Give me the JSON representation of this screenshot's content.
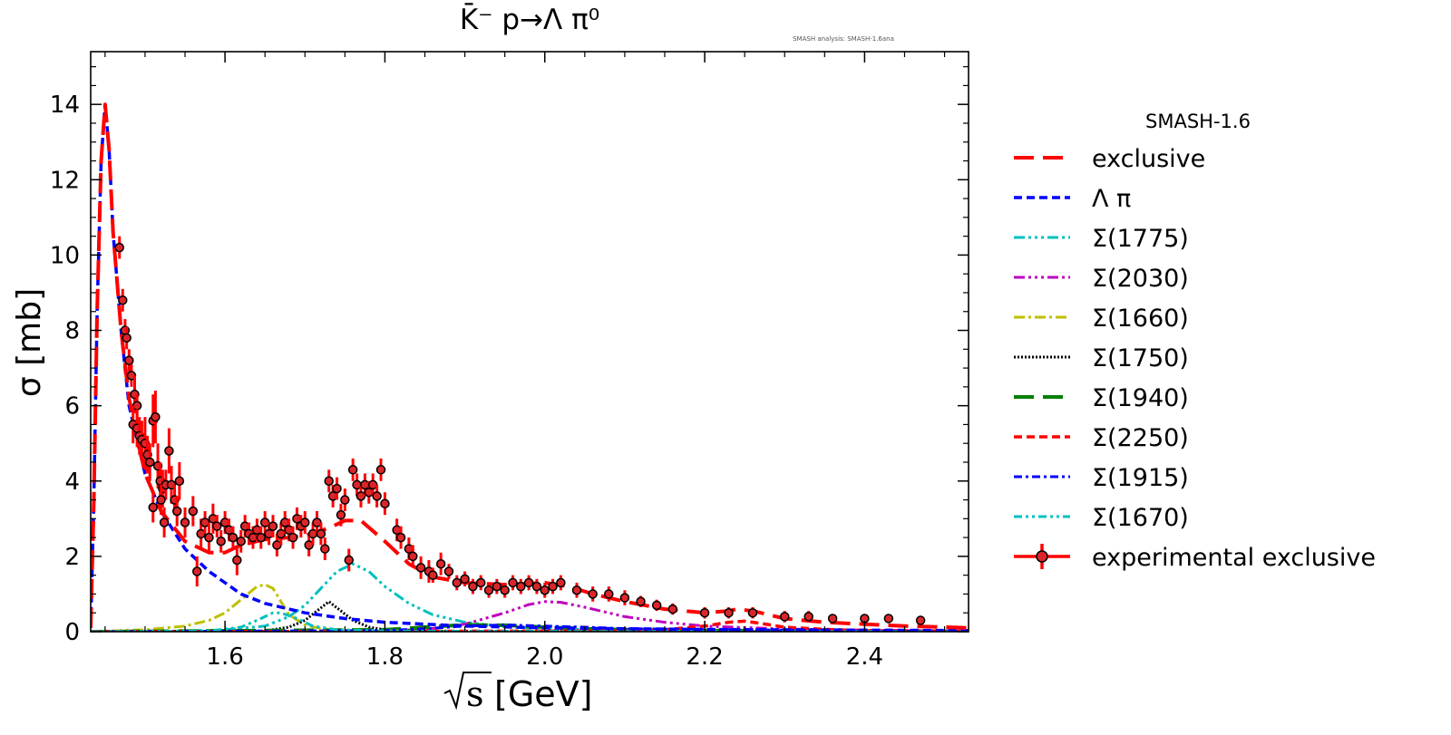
{
  "chart_data": {
    "type": "line",
    "title": "K̄⁻ p→Λ π⁰",
    "watermark": "SMASH analysis: SMASH-1.6ana",
    "xlabel_root": "s",
    "xlabel_unit": "[GeV]",
    "ylabel": "σ [mb]",
    "xlim": [
      1.432,
      2.53
    ],
    "ylim": [
      0,
      15.4
    ],
    "xticks": [
      1.6,
      1.8,
      2.0,
      2.2,
      2.4
    ],
    "xtick_labels": [
      "1.6",
      "1.8",
      "2.0",
      "2.2",
      "2.4"
    ],
    "yticks": [
      0,
      2,
      4,
      6,
      8,
      10,
      12,
      14
    ],
    "ytick_labels": [
      "0",
      "2",
      "4",
      "6",
      "8",
      "10",
      "12",
      "14"
    ],
    "legend_title": "SMASH-1.6",
    "series": [
      {
        "name": "exclusive",
        "color": "#ff0000",
        "dash": "22,10",
        "width": 4,
        "x": [
          1.432,
          1.436,
          1.44,
          1.445,
          1.45,
          1.455,
          1.46,
          1.47,
          1.48,
          1.5,
          1.52,
          1.55,
          1.58,
          1.6,
          1.62,
          1.65,
          1.68,
          1.7,
          1.73,
          1.75,
          1.77,
          1.8,
          1.83,
          1.86,
          1.9,
          1.95,
          2.0,
          2.03,
          2.06,
          2.1,
          2.15,
          2.2,
          2.23,
          2.24,
          2.26,
          2.3,
          2.35,
          2.4,
          2.45,
          2.5,
          2.53
        ],
        "y": [
          0.1,
          3.5,
          8.5,
          12.5,
          14.0,
          12.8,
          10.6,
          8.0,
          6.2,
          4.2,
          3.2,
          2.4,
          2.1,
          2.1,
          2.3,
          2.45,
          2.5,
          2.55,
          2.75,
          2.95,
          2.95,
          2.4,
          1.8,
          1.45,
          1.3,
          1.25,
          1.3,
          1.2,
          1.0,
          0.8,
          0.6,
          0.5,
          0.55,
          0.6,
          0.55,
          0.35,
          0.25,
          0.2,
          0.15,
          0.12,
          0.1
        ]
      },
      {
        "name": "Λ π",
        "color": "#0000ff",
        "dash": "9,5",
        "width": 3.5,
        "x": [
          1.432,
          1.436,
          1.44,
          1.445,
          1.45,
          1.455,
          1.46,
          1.47,
          1.48,
          1.5,
          1.52,
          1.55,
          1.58,
          1.6,
          1.62,
          1.65,
          1.7,
          1.75,
          1.8,
          1.9,
          2.0,
          2.1,
          2.2,
          2.3,
          2.4,
          2.53
        ],
        "y": [
          0.1,
          3.5,
          8.5,
          12.5,
          14.0,
          12.8,
          10.6,
          8.0,
          6.0,
          4.2,
          3.2,
          2.2,
          1.6,
          1.3,
          1.0,
          0.75,
          0.5,
          0.35,
          0.25,
          0.15,
          0.1,
          0.08,
          0.06,
          0.05,
          0.04,
          0.03
        ]
      },
      {
        "name": "Σ(1775)",
        "color": "#00bfbf",
        "dash": "12,4,3,4,3,4,3,4",
        "width": 3,
        "x": [
          1.432,
          1.55,
          1.6,
          1.65,
          1.68,
          1.7,
          1.72,
          1.74,
          1.76,
          1.78,
          1.8,
          1.83,
          1.86,
          1.9,
          1.95,
          2.0,
          2.1,
          2.2,
          2.53
        ],
        "y": [
          0,
          0.02,
          0.05,
          0.15,
          0.4,
          0.7,
          1.15,
          1.6,
          1.8,
          1.6,
          1.2,
          0.75,
          0.45,
          0.25,
          0.13,
          0.08,
          0.04,
          0.02,
          0.01
        ]
      },
      {
        "name": "Σ(2030)",
        "color": "#bf00bf",
        "dash": "12,4,3,4,3,4,3,4",
        "width": 3,
        "x": [
          1.432,
          1.8,
          1.85,
          1.9,
          1.95,
          1.98,
          2.0,
          2.02,
          2.05,
          2.1,
          2.15,
          2.2,
          2.3,
          2.4,
          2.53
        ],
        "y": [
          0,
          0.02,
          0.06,
          0.2,
          0.5,
          0.72,
          0.8,
          0.78,
          0.65,
          0.4,
          0.25,
          0.15,
          0.07,
          0.04,
          0.02
        ]
      },
      {
        "name": "Σ(1660)",
        "color": "#bfbf00",
        "dash": "12,4,3,4",
        "width": 3,
        "x": [
          1.432,
          1.5,
          1.55,
          1.58,
          1.6,
          1.62,
          1.64,
          1.65,
          1.66,
          1.67,
          1.68,
          1.7,
          1.72,
          1.76,
          1.8,
          1.9,
          2.0,
          2.53
        ],
        "y": [
          0,
          0.05,
          0.15,
          0.3,
          0.5,
          0.85,
          1.2,
          1.25,
          1.15,
          0.8,
          0.45,
          0.18,
          0.08,
          0.03,
          0.02,
          0.01,
          0.005,
          0
        ]
      },
      {
        "name": "Σ(1750)",
        "color": "#000000",
        "dash": "2,2",
        "width": 3,
        "x": [
          1.432,
          1.65,
          1.68,
          1.7,
          1.715,
          1.73,
          1.745,
          1.76,
          1.78,
          1.8,
          1.85,
          1.9,
          2.53
        ],
        "y": [
          0,
          0.02,
          0.12,
          0.3,
          0.55,
          0.8,
          0.55,
          0.3,
          0.12,
          0.05,
          0.02,
          0.01,
          0
        ]
      },
      {
        "name": "Σ(1940)",
        "color": "#007f00",
        "dash": "22,10",
        "width": 4,
        "x": [
          1.432,
          1.8,
          1.85,
          1.9,
          1.95,
          2.0,
          2.05,
          2.1,
          2.2,
          2.3,
          2.53
        ],
        "y": [
          0,
          0.05,
          0.12,
          0.18,
          0.17,
          0.12,
          0.08,
          0.05,
          0.03,
          0.02,
          0.01
        ]
      },
      {
        "name": "Σ(2250)",
        "color": "#ff0000",
        "dash": "9,5",
        "width": 3.5,
        "x": [
          1.432,
          2.1,
          2.15,
          2.2,
          2.23,
          2.25,
          2.27,
          2.3,
          2.35,
          2.4,
          2.53
        ],
        "y": [
          0,
          0.02,
          0.05,
          0.15,
          0.25,
          0.28,
          0.22,
          0.12,
          0.06,
          0.03,
          0.01
        ]
      },
      {
        "name": "Σ(1915)",
        "color": "#0000ff",
        "dash": "9,4,3,4",
        "width": 3,
        "x": [
          1.432,
          1.8,
          1.85,
          1.9,
          1.95,
          2.0,
          2.05,
          2.1,
          2.2,
          2.3,
          2.4,
          2.53
        ],
        "y": [
          0,
          0.03,
          0.08,
          0.15,
          0.18,
          0.15,
          0.12,
          0.08,
          0.06,
          0.04,
          0.02,
          0.01
        ]
      },
      {
        "name": "Σ(1670)",
        "color": "#00bfbf",
        "dash": "9,4,3,4,3,4",
        "width": 3,
        "x": [
          1.432,
          1.58,
          1.62,
          1.64,
          1.66,
          1.67,
          1.69,
          1.71,
          1.74,
          1.8,
          1.9,
          2.53
        ],
        "y": [
          0,
          0.02,
          0.12,
          0.3,
          0.5,
          0.5,
          0.35,
          0.15,
          0.05,
          0.02,
          0.01,
          0
        ]
      }
    ],
    "experimental": {
      "name": "experimental exclusive",
      "color": "#ff0000",
      "marker": "#d9262a",
      "points": [
        [
          1.468,
          10.2,
          0.3
        ],
        [
          1.472,
          8.8,
          0.3
        ],
        [
          1.475,
          8.0,
          0.3
        ],
        [
          1.477,
          7.8,
          0.3
        ],
        [
          1.48,
          7.2,
          0.3
        ],
        [
          1.483,
          6.8,
          0.3
        ],
        [
          1.487,
          6.3,
          0.5
        ],
        [
          1.49,
          6.0,
          0.3
        ],
        [
          1.485,
          5.5,
          0.5
        ],
        [
          1.49,
          5.4,
          0.5
        ],
        [
          1.493,
          5.2,
          0.5
        ],
        [
          1.496,
          5.1,
          0.5
        ],
        [
          1.5,
          5.0,
          0.7
        ],
        [
          1.503,
          4.7,
          0.5
        ],
        [
          1.506,
          4.5,
          0.5
        ],
        [
          1.51,
          5.6,
          0.7
        ],
        [
          1.513,
          5.7,
          0.7
        ],
        [
          1.516,
          4.4,
          0.6
        ],
        [
          1.519,
          4.0,
          0.5
        ],
        [
          1.522,
          3.8,
          0.5
        ],
        [
          1.526,
          3.9,
          0.4
        ],
        [
          1.53,
          4.8,
          0.6
        ],
        [
          1.533,
          3.9,
          0.5
        ],
        [
          1.537,
          3.5,
          0.4
        ],
        [
          1.54,
          3.2,
          0.4
        ],
        [
          1.543,
          4.0,
          0.5
        ],
        [
          1.52,
          3.5,
          0.4
        ],
        [
          1.524,
          2.9,
          0.4
        ],
        [
          1.51,
          3.3,
          0.4
        ],
        [
          1.55,
          2.9,
          0.4
        ],
        [
          1.56,
          3.2,
          0.4
        ],
        [
          1.565,
          1.6,
          0.4
        ],
        [
          1.57,
          2.6,
          0.4
        ],
        [
          1.575,
          2.9,
          0.3
        ],
        [
          1.58,
          2.5,
          0.4
        ],
        [
          1.585,
          3.0,
          0.4
        ],
        [
          1.59,
          2.8,
          0.3
        ],
        [
          1.595,
          2.4,
          0.3
        ],
        [
          1.6,
          2.9,
          0.3
        ],
        [
          1.605,
          2.7,
          0.3
        ],
        [
          1.61,
          2.5,
          0.3
        ],
        [
          1.615,
          1.9,
          0.4
        ],
        [
          1.62,
          2.4,
          0.3
        ],
        [
          1.625,
          2.8,
          0.3
        ],
        [
          1.63,
          2.6,
          0.3
        ],
        [
          1.635,
          2.5,
          0.3
        ],
        [
          1.64,
          2.7,
          0.3
        ],
        [
          1.645,
          2.5,
          0.3
        ],
        [
          1.65,
          2.9,
          0.3
        ],
        [
          1.655,
          2.6,
          0.3
        ],
        [
          1.66,
          2.8,
          0.3
        ],
        [
          1.665,
          2.3,
          0.3
        ],
        [
          1.67,
          2.6,
          0.3
        ],
        [
          1.675,
          2.9,
          0.3
        ],
        [
          1.68,
          2.7,
          0.3
        ],
        [
          1.685,
          2.5,
          0.3
        ],
        [
          1.69,
          3.0,
          0.3
        ],
        [
          1.695,
          2.8,
          0.3
        ],
        [
          1.7,
          2.9,
          0.3
        ],
        [
          1.705,
          2.3,
          0.3
        ],
        [
          1.71,
          2.6,
          0.3
        ],
        [
          1.715,
          2.9,
          0.3
        ],
        [
          1.72,
          2.6,
          0.3
        ],
        [
          1.725,
          2.2,
          0.3
        ],
        [
          1.73,
          4.0,
          0.3
        ],
        [
          1.735,
          3.6,
          0.3
        ],
        [
          1.74,
          3.8,
          0.3
        ],
        [
          1.745,
          3.1,
          0.3
        ],
        [
          1.75,
          3.5,
          0.3
        ],
        [
          1.755,
          1.9,
          0.3
        ],
        [
          1.76,
          4.3,
          0.3
        ],
        [
          1.765,
          3.9,
          0.3
        ],
        [
          1.77,
          3.6,
          0.3
        ],
        [
          1.775,
          3.9,
          0.3
        ],
        [
          1.78,
          3.7,
          0.3
        ],
        [
          1.785,
          3.9,
          0.3
        ],
        [
          1.79,
          3.6,
          0.3
        ],
        [
          1.795,
          4.3,
          0.3
        ],
        [
          1.8,
          3.4,
          0.3
        ],
        [
          1.815,
          2.7,
          0.3
        ],
        [
          1.82,
          2.5,
          0.3
        ],
        [
          1.83,
          2.2,
          0.3
        ],
        [
          1.835,
          2.0,
          0.3
        ],
        [
          1.845,
          1.7,
          0.3
        ],
        [
          1.855,
          1.6,
          0.3
        ],
        [
          1.86,
          1.5,
          0.2
        ],
        [
          1.87,
          1.8,
          0.3
        ],
        [
          1.88,
          1.6,
          0.2
        ],
        [
          1.89,
          1.3,
          0.2
        ],
        [
          1.9,
          1.4,
          0.2
        ],
        [
          1.91,
          1.2,
          0.2
        ],
        [
          1.92,
          1.3,
          0.2
        ],
        [
          1.93,
          1.1,
          0.2
        ],
        [
          1.94,
          1.2,
          0.2
        ],
        [
          1.95,
          1.1,
          0.2
        ],
        [
          1.96,
          1.3,
          0.2
        ],
        [
          1.97,
          1.2,
          0.2
        ],
        [
          1.98,
          1.3,
          0.2
        ],
        [
          1.99,
          1.2,
          0.2
        ],
        [
          2.0,
          1.1,
          0.2
        ],
        [
          2.01,
          1.2,
          0.2
        ],
        [
          2.02,
          1.3,
          0.2
        ],
        [
          2.04,
          1.1,
          0.2
        ],
        [
          2.06,
          1.0,
          0.2
        ],
        [
          2.08,
          1.0,
          0.2
        ],
        [
          2.1,
          0.9,
          0.2
        ],
        [
          2.12,
          0.8,
          0.15
        ],
        [
          2.14,
          0.7,
          0.15
        ],
        [
          2.16,
          0.6,
          0.15
        ],
        [
          2.2,
          0.5,
          0.15
        ],
        [
          2.23,
          0.5,
          0.15
        ],
        [
          2.26,
          0.5,
          0.15
        ],
        [
          2.3,
          0.4,
          0.15
        ],
        [
          2.33,
          0.4,
          0.15
        ],
        [
          2.36,
          0.35,
          0.1
        ],
        [
          2.4,
          0.35,
          0.1
        ],
        [
          2.43,
          0.35,
          0.1
        ],
        [
          2.47,
          0.3,
          0.1
        ]
      ]
    }
  }
}
